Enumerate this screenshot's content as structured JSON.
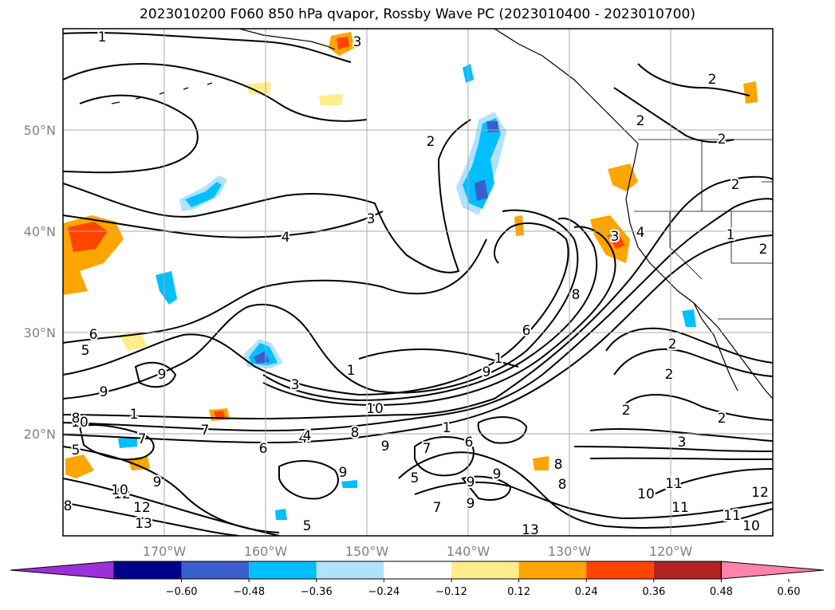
{
  "title": "2023010200 F060 850 hPa qvapor, Rossby Wave PC (2023010400 - 2023010700)",
  "map": {
    "lat_labels": [
      "50°N",
      "40°N",
      "30°N",
      "20°N"
    ],
    "lon_labels": [
      "170°W",
      "160°W",
      "150°W",
      "140°W",
      "130°W",
      "120°W"
    ],
    "grid": true,
    "features": [
      "coastline",
      "state-borders"
    ]
  },
  "colorbar": {
    "orientation": "horizontal",
    "extend": "both",
    "ticks": [
      "−0.60",
      "−0.48",
      "−0.36",
      "−0.24",
      "−0.12",
      "0.12",
      "0.24",
      "0.36",
      "0.48",
      "0.60"
    ],
    "colors": [
      "#9b30d9",
      "#00008b",
      "#3a5fcd",
      "#00bfff",
      "#b0e2ff",
      "#ffffff",
      "#ffec8b",
      "#ffa500",
      "#ff4500",
      "#b22222",
      "#ff82ab"
    ]
  },
  "contour_labels": [
    "1",
    "3",
    "2",
    "2",
    "2",
    "2",
    "2",
    "1",
    "2",
    "3",
    "4",
    "3",
    "4",
    "2",
    "2",
    "8",
    "6",
    "4",
    "1",
    "1",
    "2",
    "3",
    "6",
    "5",
    "9",
    "9",
    "1",
    "3",
    "10",
    "7",
    "9",
    "1",
    "10",
    "6",
    "8",
    "7",
    "9",
    "5",
    "9",
    "9",
    "6",
    "8",
    "9",
    "8",
    "9",
    "7",
    "10",
    "11",
    "11",
    "11",
    "12",
    "10",
    "12",
    "13",
    "8",
    "12",
    "13",
    "10",
    "8",
    "5",
    "7",
    "9",
    "5",
    "4",
    "2"
  ]
}
